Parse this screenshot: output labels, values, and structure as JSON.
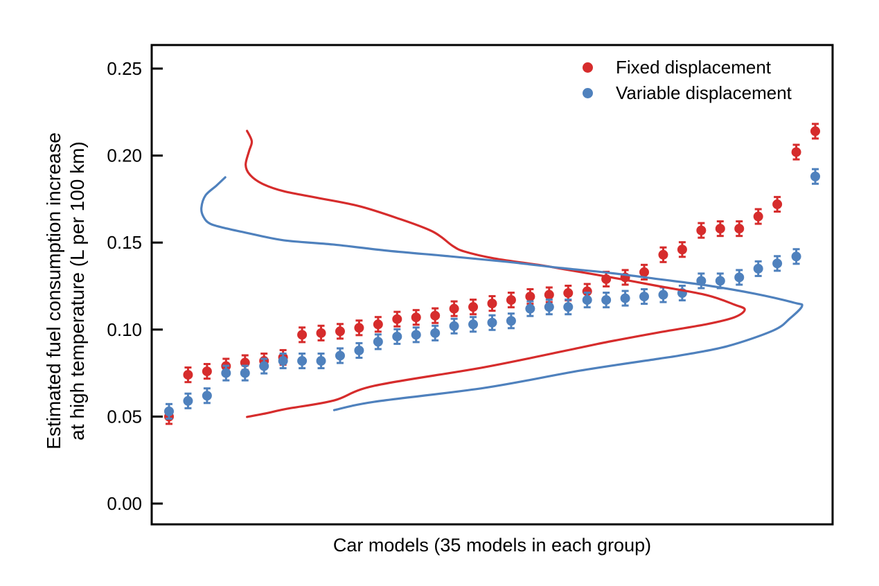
{
  "chart_data": {
    "type": "scatter",
    "title": "",
    "xlabel": "Car models (35 models in each group)",
    "ylabel": "Estimated fuel consumption increase at high temperature (L per 100 km)",
    "ylabel_line1": "Estimated fuel consumption increase",
    "ylabel_line2": "at high temperature (L per 100 km)",
    "x_axis": {
      "type": "index",
      "n_points_per_group": 35,
      "tick_labels": []
    },
    "y_axis": {
      "tick_labels": [
        "0.00",
        "0.05",
        "0.10",
        "0.15",
        "0.20",
        "0.25"
      ],
      "tick_values": [
        0,
        0.05,
        0.1,
        0.15,
        0.2,
        0.25
      ],
      "range_shown": [
        -0.015,
        0.263
      ],
      "grid": "off"
    },
    "error_bar_half_height": 0.0042,
    "legend": {
      "position": "top-right-inside",
      "items": [
        "Fixed displacement",
        "Variable displacement"
      ]
    },
    "series": [
      {
        "name": "Fixed displacement",
        "color": "#d62c2c",
        "marker": "circle",
        "values": [
          0.05,
          0.074,
          0.076,
          0.079,
          0.081,
          0.082,
          0.084,
          0.097,
          0.098,
          0.099,
          0.101,
          0.103,
          0.106,
          0.107,
          0.108,
          0.112,
          0.113,
          0.115,
          0.117,
          0.119,
          0.12,
          0.121,
          0.122,
          0.129,
          0.13,
          0.133,
          0.143,
          0.146,
          0.157,
          0.158,
          0.158,
          0.165,
          0.172,
          0.202,
          0.214
        ]
      },
      {
        "name": "Variable displacement",
        "color": "#4f81bd",
        "marker": "circle",
        "values": [
          0.053,
          0.059,
          0.062,
          0.075,
          0.075,
          0.079,
          0.082,
          0.082,
          0.082,
          0.085,
          0.088,
          0.093,
          0.096,
          0.097,
          0.098,
          0.102,
          0.103,
          0.104,
          0.105,
          0.112,
          0.113,
          0.113,
          0.117,
          0.117,
          0.118,
          0.119,
          0.12,
          0.121,
          0.128,
          0.128,
          0.13,
          0.135,
          0.138,
          0.142,
          0.188
        ]
      }
    ],
    "density_curves": [
      {
        "name": "Fixed displacement",
        "color": "#d62c2c",
        "points": [
          [
            0.14,
            0.2142
          ],
          [
            0.147,
            0.2082
          ],
          [
            0.143,
            0.2026
          ],
          [
            0.138,
            0.1947
          ],
          [
            0.144,
            0.1891
          ],
          [
            0.162,
            0.1839
          ],
          [
            0.194,
            0.1795
          ],
          [
            0.245,
            0.1756
          ],
          [
            0.306,
            0.1708
          ],
          [
            0.367,
            0.1632
          ],
          [
            0.408,
            0.1572
          ],
          [
            0.425,
            0.1533
          ],
          [
            0.442,
            0.1481
          ],
          [
            0.459,
            0.1449
          ],
          [
            0.503,
            0.1409
          ],
          [
            0.571,
            0.137
          ],
          [
            0.601,
            0.135
          ],
          [
            0.672,
            0.1302
          ],
          [
            0.744,
            0.125
          ],
          [
            0.815,
            0.1198
          ],
          [
            0.856,
            0.1143
          ],
          [
            0.871,
            0.1115
          ],
          [
            0.856,
            0.1071
          ],
          [
            0.815,
            0.1031
          ],
          [
            0.744,
            0.0983
          ],
          [
            0.672,
            0.0931
          ],
          [
            0.629,
            0.0896
          ],
          [
            0.489,
            0.0784
          ],
          [
            0.327,
            0.0677
          ],
          [
            0.268,
            0.0593
          ],
          [
            0.199,
            0.0545
          ],
          [
            0.166,
            0.0517
          ],
          [
            0.14,
            0.0498
          ]
        ]
      },
      {
        "name": "Variable displacement",
        "color": "#4f81bd",
        "points": [
          [
            0.108,
            0.1875
          ],
          [
            0.095,
            0.1827
          ],
          [
            0.079,
            0.1771
          ],
          [
            0.073,
            0.17
          ],
          [
            0.076,
            0.1648
          ],
          [
            0.086,
            0.1608
          ],
          [
            0.11,
            0.1581
          ],
          [
            0.143,
            0.1553
          ],
          [
            0.194,
            0.1513
          ],
          [
            0.266,
            0.1489
          ],
          [
            0.347,
            0.1453
          ],
          [
            0.438,
            0.1421
          ],
          [
            0.523,
            0.1389
          ],
          [
            0.601,
            0.1354
          ],
          [
            0.672,
            0.1326
          ],
          [
            0.744,
            0.129
          ],
          [
            0.815,
            0.1254
          ],
          [
            0.886,
            0.1206
          ],
          [
            0.944,
            0.1154
          ],
          [
            0.955,
            0.1134
          ],
          [
            0.937,
            0.1063
          ],
          [
            0.913,
            0.0995
          ],
          [
            0.845,
            0.0904
          ],
          [
            0.777,
            0.0852
          ],
          [
            0.744,
            0.0832
          ],
          [
            0.629,
            0.0764
          ],
          [
            0.489,
            0.0665
          ],
          [
            0.327,
            0.0585
          ],
          [
            0.268,
            0.0537
          ]
        ]
      }
    ]
  }
}
